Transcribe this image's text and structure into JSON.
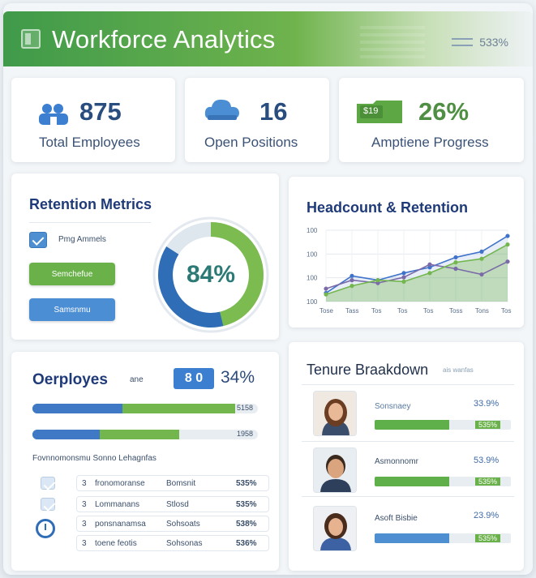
{
  "header": {
    "title": "Workforce Analytics",
    "right_text": "533%"
  },
  "stats": [
    {
      "value": "875",
      "label": "Total Employees",
      "icon": "people-icon"
    },
    {
      "value": "16",
      "label": "Open Positions",
      "icon": "cloud-icon"
    },
    {
      "value": "26%",
      "label": "Amptiene Progress",
      "icon": "folder-icon",
      "icon_text": "$19"
    }
  ],
  "retention": {
    "title": "Retention Metrics",
    "checkbox_label": "Pmg Ammels",
    "button_green": "Semchefue",
    "button_blue": "Samsnmu",
    "gauge_value": "84%",
    "gauge_fraction": 0.84
  },
  "headcount": {
    "title": "Headcount & Retention",
    "y_ticks": [
      "100",
      "100",
      "100",
      "100"
    ],
    "x_ticks": [
      "Tose",
      "Tass",
      "Tos",
      "Tos",
      "Tos",
      "Toss",
      "Tons",
      "Tos"
    ],
    "colors": {
      "blue": "#3f73c9",
      "green": "#74b64e",
      "purple": "#7a6aa8"
    }
  },
  "chart_data": {
    "type": "line",
    "title": "Headcount & Retention",
    "categories": [
      "Tose",
      "Tass",
      "Tos",
      "Tos",
      "Tos",
      "Toss",
      "Tons",
      "Tos"
    ],
    "ylim": [
      0,
      100
    ],
    "grid": true,
    "series": [
      {
        "values": [
          12,
          36,
          30,
          40,
          48,
          62,
          70,
          92
        ]
      },
      {
        "values": [
          18,
          30,
          26,
          34,
          52,
          46,
          38,
          56
        ]
      },
      {
        "values": [
          10,
          22,
          30,
          28,
          40,
          55,
          60,
          80
        ]
      }
    ]
  },
  "employees": {
    "title": "Oerployes",
    "title_suffix": "ane",
    "badge": "8 0",
    "percent": "34%",
    "bars": [
      {
        "blue": 0.4,
        "green": 0.9,
        "label": "5158"
      },
      {
        "blue": 0.3,
        "green": 0.65,
        "label": "1958"
      }
    ],
    "list_header": "Fovnnomonsmu Sonno Lehagnfas",
    "rows": [
      {
        "num": "3",
        "name": "fronomoranse",
        "dept": "Bomsnit",
        "value": "535%"
      },
      {
        "num": "3",
        "name": "Lommanans",
        "dept": "Stlosd",
        "value": "535%"
      },
      {
        "num": "3",
        "name": "ponsnanamsa",
        "dept": "Sohsoats",
        "value": "538%"
      },
      {
        "num": "3",
        "name": "toene feotis",
        "dept": "Sohsonas",
        "value": "536%"
      }
    ]
  },
  "tenure": {
    "title": "Tenure Braakdown",
    "title_suffix": "ais wanfas",
    "people": [
      {
        "name": "Sonsnaey",
        "value": "33.9%",
        "bar_value": "535%",
        "bar_fraction": 0.55,
        "color": "#5fb04a"
      },
      {
        "name": "Asmonnomr",
        "value": "53.9%",
        "bar_value": "535%",
        "bar_fraction": 0.55,
        "color": "#5fb04a"
      },
      {
        "name": "Asoft Bisbie",
        "value": "23.9%",
        "bar_value": "535%",
        "bar_fraction": 0.55,
        "color": "#4d8fd0"
      }
    ]
  }
}
